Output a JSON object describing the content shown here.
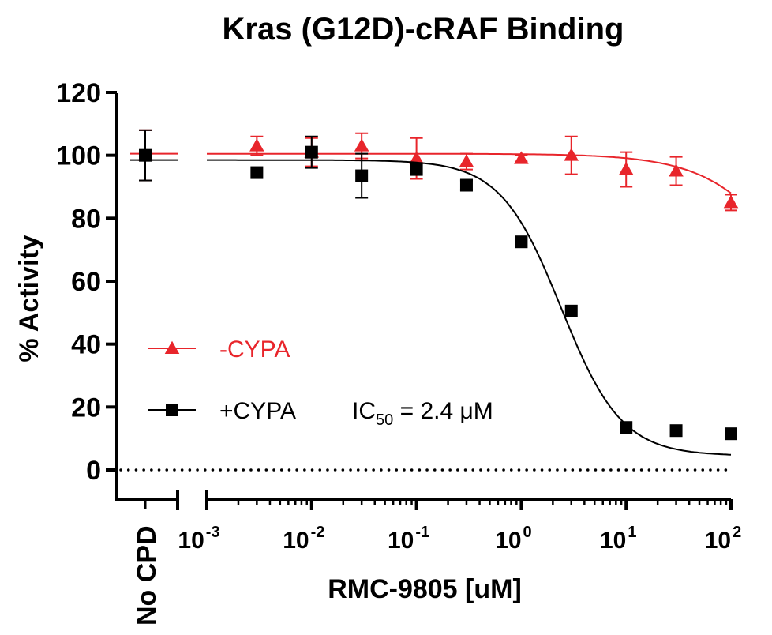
{
  "chart_data": {
    "type": "scatter",
    "title": "Kras (G12D)-cRAF Binding",
    "xlabel": "RMC-9805 [uM]",
    "ylabel": "% Activity",
    "xscale": "log",
    "xlim": [
      0.001,
      100
    ],
    "ylim": [
      0,
      120
    ],
    "y_ticks": [
      "0",
      "20",
      "40",
      "60",
      "80",
      "100",
      "120"
    ],
    "x_ticks": [
      {
        "base": "10",
        "exp": "-3"
      },
      {
        "base": "10",
        "exp": "-2"
      },
      {
        "base": "10",
        "exp": "-1"
      },
      {
        "base": "10",
        "exp": "0"
      },
      {
        "base": "10",
        "exp": "1"
      },
      {
        "base": "10",
        "exp": "2"
      }
    ],
    "control_label": "No CPD",
    "reference_line": {
      "y": 0,
      "style": "dotted"
    },
    "grid": false,
    "legend_position": "left-center",
    "series": [
      {
        "name": "-CYPA",
        "color": "#e8252b",
        "marker": "triangle",
        "control": {
          "y": 100,
          "err": 8
        },
        "x": [
          0.003,
          0.01,
          0.03,
          0.1,
          0.3,
          1,
          3,
          10,
          30,
          100
        ],
        "y": [
          103,
          101,
          103,
          99,
          98,
          99,
          100,
          95.5,
          95,
          85
        ],
        "err": [
          3,
          4.5,
          4,
          6.5,
          2.5,
          1,
          6,
          5.5,
          4.5,
          2.5
        ],
        "fit": {
          "top": 100.5,
          "bottom": 0,
          "ic50": 700,
          "hill": 1
        }
      },
      {
        "name": "+CYPA",
        "color": "#000000",
        "marker": "square",
        "control": {
          "y": 100,
          "err": 8
        },
        "x": [
          0.003,
          0.01,
          0.03,
          0.1,
          0.3,
          1,
          3,
          10,
          30,
          100
        ],
        "y": [
          94.5,
          101,
          93.5,
          95.5,
          90.5,
          72.5,
          50.5,
          13.5,
          12.5,
          11.5
        ],
        "err": [
          0,
          5,
          7,
          0,
          1.5,
          0,
          0,
          0,
          0,
          0
        ],
        "fit": {
          "top": 98.5,
          "bottom": 4.5,
          "ic50": 2.4,
          "hill": 1.5
        }
      }
    ],
    "annotations": [
      {
        "text_main": "IC",
        "text_sub": "50",
        "text_rest": " = 2.4 μM"
      }
    ]
  }
}
